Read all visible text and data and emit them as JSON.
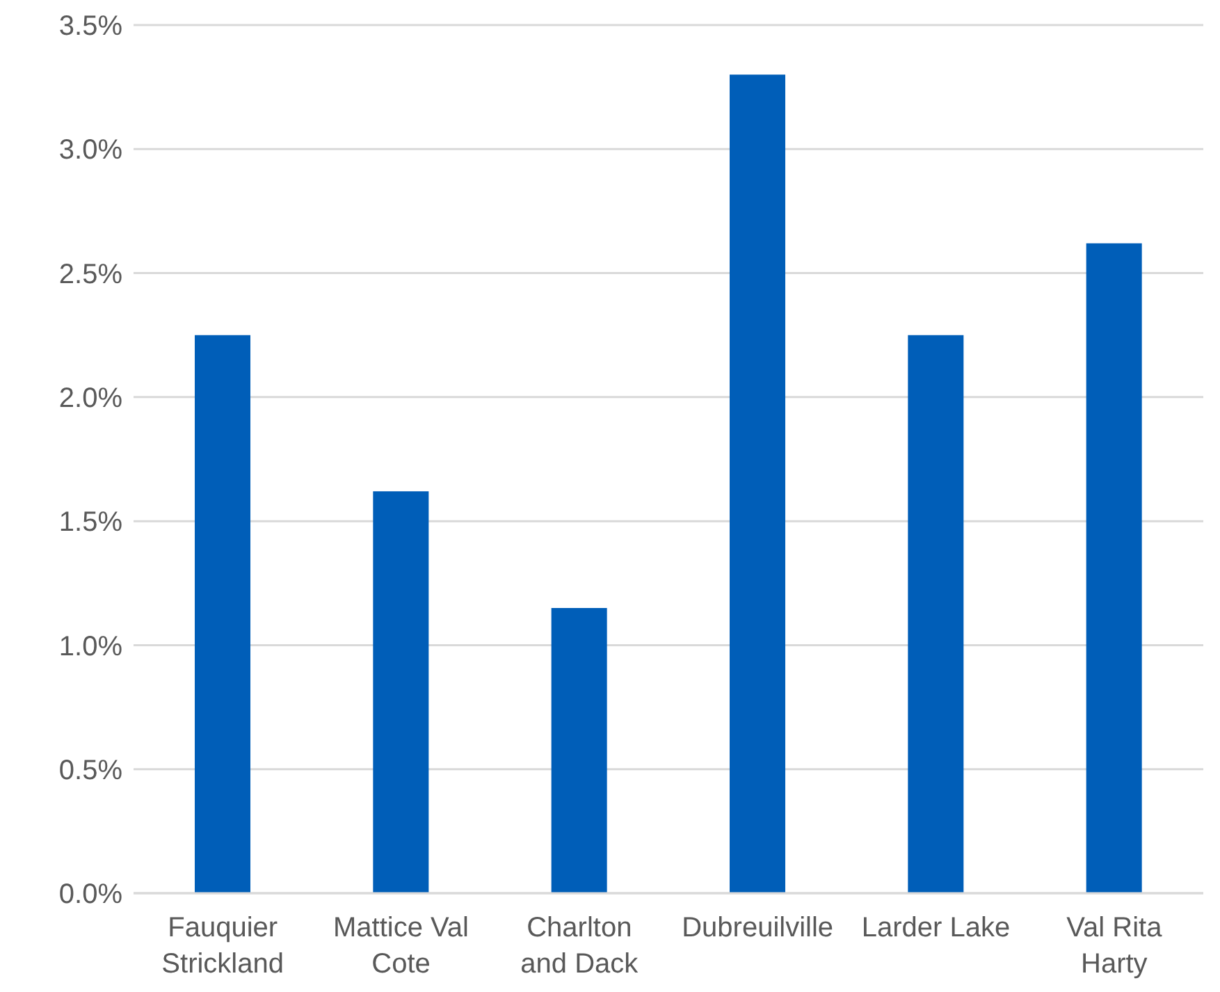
{
  "chart_data": {
    "type": "bar",
    "categories": [
      "Fauquier Strickland",
      "Mattice Val Cote",
      "Charlton and Dack",
      "Dubreuilville",
      "Larder Lake",
      "Val Rita Harty"
    ],
    "values": [
      2.25,
      1.62,
      1.15,
      3.3,
      2.25,
      2.62
    ],
    "color": "#005eb8",
    "ylim": [
      0,
      3.5
    ],
    "yticks": [
      {
        "value": 0,
        "label": "0.0%"
      },
      {
        "value": 0.5,
        "label": "0.5%"
      },
      {
        "value": 1,
        "label": "1.0%"
      },
      {
        "value": 1.5,
        "label": "1.5%"
      },
      {
        "value": 2,
        "label": "2.0%"
      },
      {
        "value": 2.5,
        "label": "2.5%"
      },
      {
        "value": 3,
        "label": "3.0%"
      },
      {
        "value": 3.5,
        "label": "3.5%"
      }
    ],
    "grid": "y"
  }
}
